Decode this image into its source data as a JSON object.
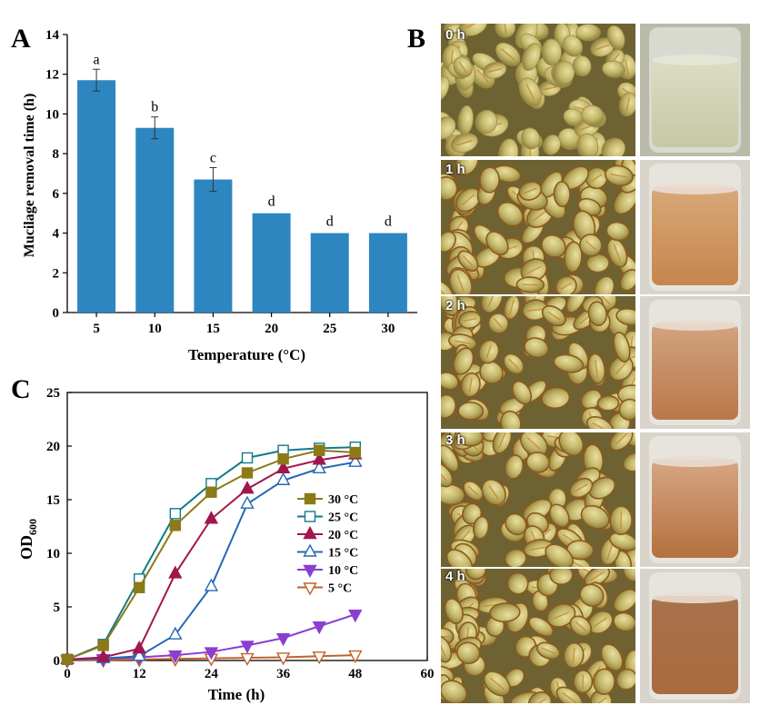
{
  "panels": {
    "a": "A",
    "b": "B",
    "c": "C"
  },
  "chart_data": [
    {
      "type": "bar",
      "panel": "A",
      "categories": [
        "5",
        "10",
        "15",
        "20",
        "25",
        "30"
      ],
      "values": [
        11.7,
        9.3,
        6.7,
        5.0,
        4.0,
        4.0
      ],
      "errors": [
        0.55,
        0.55,
        0.6,
        0,
        0,
        0
      ],
      "labels": [
        "a",
        "b",
        "c",
        "d",
        "d",
        "d"
      ],
      "xlabel": "Temperature (°C)",
      "ylabel": "Mucilage removal time (h)",
      "ylim": [
        0,
        14
      ],
      "yticks": [
        0,
        2,
        4,
        6,
        8,
        10,
        12,
        14
      ],
      "color": "#2e86c1"
    },
    {
      "type": "line",
      "panel": "C",
      "x": [
        0,
        6,
        12,
        18,
        24,
        30,
        36,
        42,
        48
      ],
      "xlabel": "Time (h)",
      "ylabel": "OD",
      "ylabel_sub": "600",
      "xlim": [
        0,
        60
      ],
      "ylim": [
        0,
        25
      ],
      "xticks": [
        0,
        12,
        24,
        36,
        48,
        60
      ],
      "yticks": [
        0,
        5,
        10,
        15,
        20,
        25
      ],
      "legend_position": "center-right",
      "series": [
        {
          "name": "30 °C",
          "color": "#8b7a17",
          "marker": "square-filled",
          "values": [
            0.1,
            1.4,
            6.8,
            12.6,
            15.7,
            17.5,
            18.8,
            19.6,
            19.4
          ]
        },
        {
          "name": "25 °C",
          "color": "#117a8b",
          "marker": "square-open",
          "values": [
            0.1,
            1.5,
            7.6,
            13.7,
            16.5,
            18.9,
            19.6,
            19.8,
            19.9
          ]
        },
        {
          "name": "20 °C",
          "color": "#a0174f",
          "marker": "triangle-filled",
          "values": [
            0.1,
            0.3,
            1.1,
            8.1,
            13.2,
            16.0,
            17.9,
            18.7,
            19.2
          ]
        },
        {
          "name": "15 °C",
          "color": "#2468b4",
          "marker": "triangle-open",
          "values": [
            0.1,
            0.2,
            0.4,
            2.4,
            6.9,
            14.6,
            16.8,
            17.9,
            18.5
          ]
        },
        {
          "name": "10 °C",
          "color": "#8a3fd1",
          "marker": "triangle-down-filled",
          "values": [
            0.1,
            0.15,
            0.3,
            0.5,
            0.8,
            1.4,
            2.1,
            3.2,
            4.3
          ]
        },
        {
          "name": "5 °C",
          "color": "#c0622a",
          "marker": "triangle-down-open",
          "values": [
            0.0,
            0.05,
            0.1,
            0.15,
            0.2,
            0.25,
            0.3,
            0.4,
            0.5
          ]
        }
      ]
    }
  ],
  "photos": {
    "time_labels": [
      "0 h",
      "1 h",
      "2 h",
      "3 h",
      "4 h"
    ]
  }
}
